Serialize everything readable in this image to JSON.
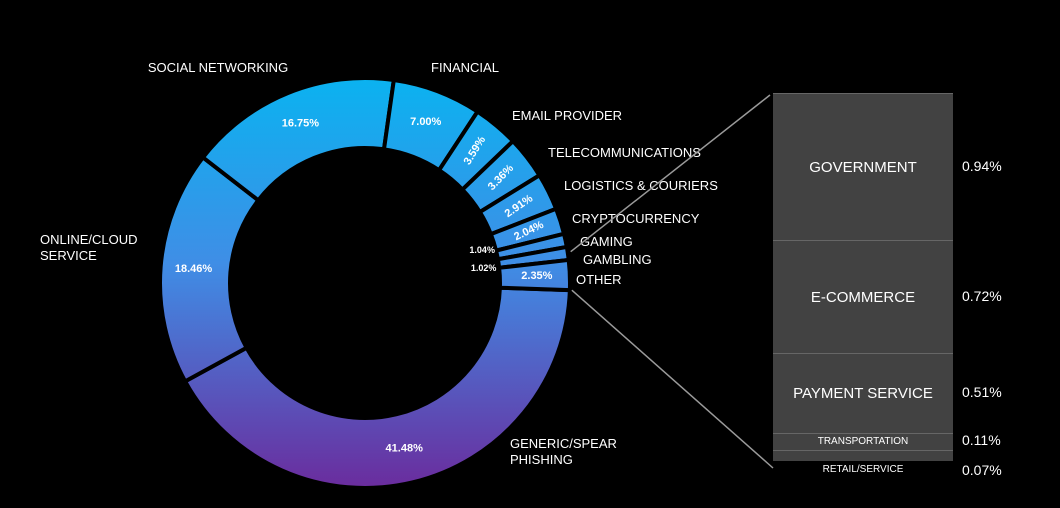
{
  "chart_data": [
    {
      "type": "pie",
      "variant": "donut",
      "categories": [
        "GENERIC/SPEAR PHISHING",
        "ONLINE/CLOUD SERVICE",
        "SOCIAL NETWORKING",
        "FINANCIAL",
        "EMAIL PROVIDER",
        "TELECOMMUNICATIONS",
        "LOGISTICS & COURIERS",
        "CRYPTOCURRENCY",
        "GAMING",
        "GAMBLING",
        "OTHER"
      ],
      "values": [
        41.48,
        18.46,
        16.75,
        7.0,
        3.59,
        3.36,
        2.91,
        2.04,
        1.04,
        1.02,
        2.35
      ],
      "value_labels": [
        "41.48%",
        "18.46%",
        "16.75%",
        "7.00%",
        "3.59%",
        "3.36%",
        "2.91%",
        "2.04%",
        "1.04%",
        "1.02%",
        "2.35%"
      ],
      "category_labels": [
        [
          "GENERIC/SPEAR",
          "PHISHING"
        ],
        [
          "ONLINE/CLOUD",
          "SERVICE"
        ],
        [
          "SOCIAL NETWORKING"
        ],
        [
          "FINANCIAL"
        ],
        [
          "EMAIL PROVIDER"
        ],
        [
          "TELECOMMUNICATIONS"
        ],
        [
          "LOGISTICS & COURIERS"
        ],
        [
          "CRYPTOCURRENCY"
        ],
        [
          "GAMING"
        ],
        [
          "GAMBLING"
        ],
        [
          "OTHER"
        ]
      ],
      "colors": {
        "top": "#0bb2f0",
        "bottom": "#6a2d9e",
        "background": "#000000"
      }
    },
    {
      "type": "bar",
      "variant": "stacked-breakdown",
      "parent_category": "OTHER",
      "categories": [
        "GOVERNMENT",
        "E-COMMERCE",
        "PAYMENT SERVICE",
        "TRANSPORTATION",
        "RETAIL/SERVICE"
      ],
      "values": [
        0.94,
        0.72,
        0.51,
        0.11,
        0.07
      ],
      "value_labels": [
        "0.94%",
        "0.72%",
        "0.51%",
        "0.11%",
        "0.07%"
      ],
      "colors": {
        "box": "#424242",
        "edge": "#666666",
        "connector": "#9a9a9a"
      }
    }
  ]
}
